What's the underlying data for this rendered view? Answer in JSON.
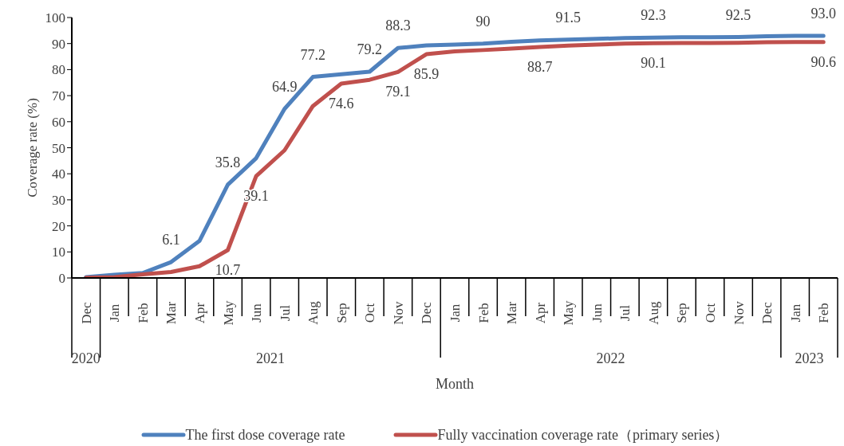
{
  "chart_data": {
    "type": "line",
    "xlabel": "Month",
    "ylabel": "Coverage rate (%)",
    "categories": [
      "Dec",
      "Jan",
      "Feb",
      "Mar",
      "Apr",
      "May",
      "Jun",
      "Jul",
      "Aug",
      "Sep",
      "Oct",
      "Nov",
      "Dec",
      "Jan",
      "Feb",
      "Mar",
      "Apr",
      "May",
      "Jun",
      "Jul",
      "Aug",
      "Sep",
      "Oct",
      "Nov",
      "Dec",
      "Jan",
      "Feb"
    ],
    "series": [
      {
        "name": "The first dose coverage rate",
        "color": "#4f81bd",
        "values": [
          0.3,
          1.2,
          1.9,
          6.1,
          14.2,
          35.8,
          46,
          64.9,
          77.2,
          78.2,
          79.2,
          88.3,
          89.3,
          89.6,
          90,
          90.7,
          91.2,
          91.5,
          91.8,
          92.1,
          92.3,
          92.4,
          92.4,
          92.5,
          92.8,
          93.0,
          93.0
        ],
        "value_labels": [
          null,
          null,
          null,
          "6.1",
          null,
          "35.8",
          null,
          "64.9",
          "77.2",
          null,
          "79.2",
          "88.3",
          null,
          null,
          "90",
          null,
          null,
          "91.5",
          null,
          null,
          "92.3",
          null,
          null,
          "92.5",
          null,
          null,
          "93.0"
        ]
      },
      {
        "name": "Fully vaccination coverage rate（primary series）",
        "color": "#c0504d",
        "values": [
          0.1,
          0.3,
          1.4,
          2.3,
          4.5,
          10.7,
          39.1,
          49,
          66,
          74.6,
          76.1,
          79.1,
          85.9,
          87,
          87.5,
          88.1,
          88.7,
          89.2,
          89.6,
          90,
          90.1,
          90.2,
          90.2,
          90.3,
          90.5,
          90.6,
          90.6
        ],
        "value_labels": [
          null,
          null,
          null,
          null,
          null,
          "10.7",
          "39.1",
          null,
          null,
          "74.6",
          null,
          "79.1",
          "85.9",
          null,
          null,
          null,
          "88.7",
          null,
          null,
          null,
          "90.1",
          null,
          null,
          null,
          null,
          null,
          "90.6"
        ]
      }
    ],
    "annotations": [
      "2020",
      "2021",
      "2022",
      "2023"
    ],
    "ylim": [
      0,
      100
    ],
    "yticks": [
      0,
      10,
      20,
      30,
      40,
      50,
      60,
      70,
      80,
      90,
      100
    ],
    "grid": false,
    "legend": "bottom",
    "marker": "none",
    "line_style": "solid"
  }
}
